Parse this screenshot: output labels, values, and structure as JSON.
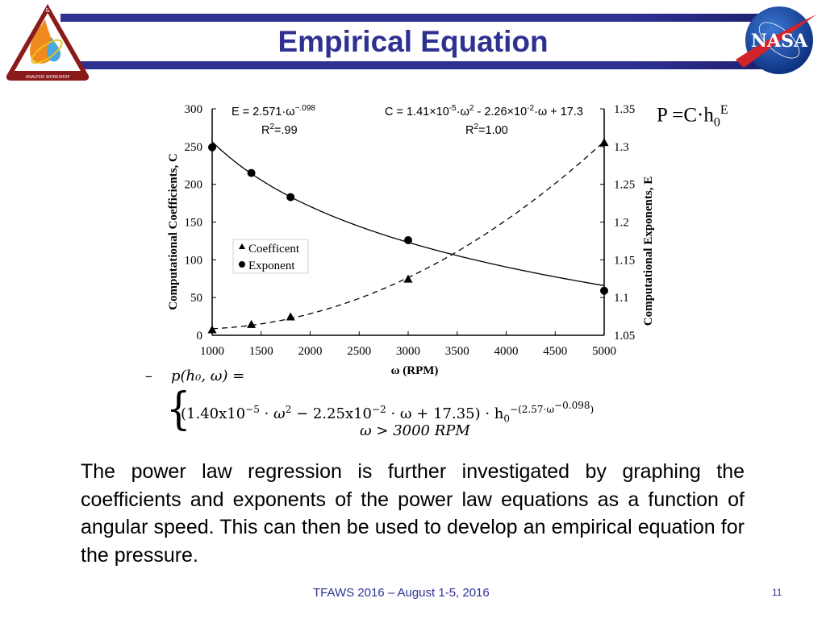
{
  "slide": {
    "title": "Empirical Equation",
    "logos": {
      "left": {
        "name": "Thermal & Fluids Analysis Workshop logo",
        "text_top": "&",
        "text_left": "THERMAL",
        "text_right": "FLUIDS",
        "text_bottom": "ANALYSIS WORKSHOP"
      },
      "right": {
        "name": "NASA meatball logo",
        "text": "NASA"
      }
    },
    "colors": {
      "title": "#2e3192",
      "bands": "#2e3192",
      "footer": "#2e3192",
      "logo_left_red": "#8b1a1a",
      "nasa_blue": "#1f4fa8",
      "nasa_red": "#d2232a"
    },
    "power_law": {
      "lhs": "P =C·h",
      "sub": "0",
      "sup": "E"
    },
    "equation": {
      "dash": "–",
      "lhs": "p(h₀, ω) =",
      "line1_a": "(1.40x10",
      "line1_a_exp": "−5",
      "line1_b": " · ω",
      "line1_b_exp": "2",
      "line1_c": " − 2.25x10",
      "line1_c_exp": "−2",
      "line1_d": " · ω + 17.35) · h",
      "line1_d_sub": "0",
      "line1_exp": "−(2.57·ω",
      "line1_exp_inner": "−0.098",
      "line1_exp_close": ")",
      "line2": "ω > 3000 RPM"
    },
    "body_text": "The power law regression is further investigated by graphing the coefficients and exponents of the power law equations as a function of angular speed. This can then be used to develop an empirical equation for the pressure.",
    "footer": "TFAWS 2016 – August 1-5, 2016",
    "page_number": "11"
  },
  "chart_data": {
    "type": "scatter",
    "title": "",
    "xlabel": "ω (RPM)",
    "ylabel": "Computational Coefficients, C",
    "y2label": "Computational Exponents, E",
    "xlim": [
      1000,
      5000
    ],
    "ylim": [
      0,
      300
    ],
    "y2lim": [
      1.05,
      1.35
    ],
    "x_ticks": [
      "1000",
      "1500",
      "2000",
      "2500",
      "3000",
      "3500",
      "4000",
      "4500",
      "5000"
    ],
    "y_ticks": [
      "0",
      "50",
      "100",
      "150",
      "200",
      "250",
      "300"
    ],
    "y2_ticks": [
      "1.05",
      "1.1",
      "1.15",
      "1.2",
      "1.25",
      "1.3",
      "1.35"
    ],
    "grid": false,
    "legend_position": "inside-left",
    "legend": [
      {
        "label": "Coefficent",
        "marker": "triangle"
      },
      {
        "label": "Exponent",
        "marker": "circle"
      }
    ],
    "annotations": [
      {
        "text": "E = 2.571·ω",
        "sup": "−.098",
        "line2": "R",
        "line2_sup": "2",
        "line2_rest": "=.99"
      },
      {
        "text": "C = 1.41×10",
        "sup1": "-5",
        "mid1": "·ω",
        "sup2": "2",
        "mid2": " - 2.26×10",
        "sup3": "-2",
        "tail": "·ω + 17.3",
        "line2": "R",
        "line2_sup": "2",
        "line2_rest": "=1.00"
      }
    ],
    "series": [
      {
        "name": "Coefficent",
        "axis": "left",
        "marker": "triangle",
        "fit": "C = 1.41e-5·ω² − 2.26e-2·ω + 17.3",
        "fit_style": "dashed",
        "x": [
          1000,
          1400,
          1800,
          3000,
          5000
        ],
        "values": [
          7,
          14,
          24,
          74,
          255
        ]
      },
      {
        "name": "Exponent",
        "axis": "right",
        "marker": "circle",
        "fit": "E = 2.571·ω^-0.098",
        "fit_style": "solid",
        "x": [
          1000,
          1400,
          1800,
          3000,
          5000
        ],
        "values": [
          1.299,
          1.265,
          1.233,
          1.176,
          1.109
        ]
      }
    ]
  }
}
